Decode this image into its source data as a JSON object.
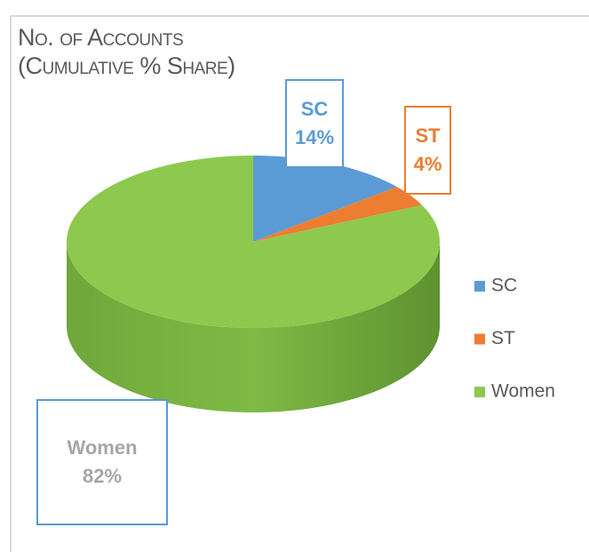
{
  "chart_data": {
    "type": "pie3d",
    "title": "No. of Accounts (Cumulative % Share)",
    "categories": [
      "SC",
      "ST",
      "Women"
    ],
    "values": [
      14,
      4,
      82
    ],
    "value_labels": [
      "14%",
      "4%",
      "82%"
    ],
    "colors": [
      "#5b9bd5",
      "#ed7d31",
      "#8dc94e"
    ],
    "legend": "right"
  }
}
